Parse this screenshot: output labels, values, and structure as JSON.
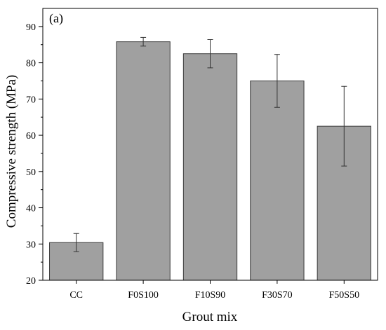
{
  "chart_data": {
    "type": "bar",
    "panel_label": "(a)",
    "xlabel": "Grout mix",
    "ylabel": "Compressive strength (MPa)",
    "categories": [
      "CC",
      "F0S100",
      "F10S90",
      "F30S70",
      "F50S50"
    ],
    "values": [
      30.4,
      85.8,
      82.5,
      75.0,
      62.5
    ],
    "error": [
      2.5,
      1.2,
      3.9,
      7.3,
      11.0
    ],
    "ylim": [
      20,
      95
    ],
    "yticks": [
      20,
      30,
      40,
      50,
      60,
      70,
      80,
      90
    ],
    "grid": false,
    "legend": "none",
    "bar_color": "#a0a0a0"
  }
}
